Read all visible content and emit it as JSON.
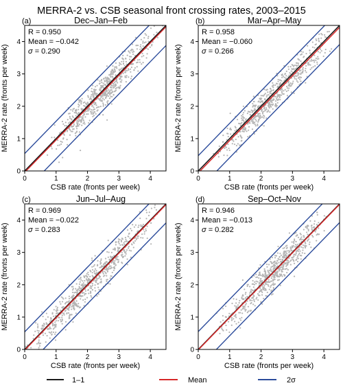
{
  "figure": {
    "title": "MERRA-2 vs. CSB seasonal front crossing rates, 2003–2015",
    "xlabel": "CSB rate (fronts per week)",
    "ylabel": "MERRA-2 rate (fronts per week)"
  },
  "legend": [
    {
      "label": "1–1",
      "color": "#1a1a1a"
    },
    {
      "label": "Mean",
      "color": "#d62728"
    },
    {
      "label": "2σ",
      "color": "#2b4b9b"
    }
  ],
  "colors": {
    "scatter": "#b5b5b5",
    "one_to_one": "#1a1a1a",
    "mean": "#d62728",
    "two_sigma": "#2b4b9b"
  },
  "chart_data": [
    {
      "type": "scatter",
      "panel": "(a)",
      "title": "Dec–Jan–Feb",
      "stats": {
        "R": "R = 0.950",
        "mean": "Mean = −0.042",
        "sigma": "= 0.290"
      },
      "mean_offset": -0.042,
      "sigma": 0.29,
      "r": 0.95,
      "point_range": [
        0.9,
        4.2
      ],
      "xlabel": "CSB rate (fronts per week)",
      "ylabel": "MERRA-2 rate (fronts per week)",
      "xlim": [
        0,
        4.5
      ],
      "ylim": [
        0,
        4.5
      ],
      "xticks": [
        "0",
        "1",
        "2",
        "3",
        "4"
      ],
      "yticks": [
        "0",
        "1",
        "2",
        "3",
        "4"
      ]
    },
    {
      "type": "scatter",
      "panel": "(b)",
      "title": "Mar–Apr–May",
      "stats": {
        "R": "R = 0.958",
        "mean": "Mean = −0.060",
        "sigma": "= 0.266"
      },
      "mean_offset": -0.06,
      "sigma": 0.266,
      "r": 0.958,
      "point_range": [
        0.7,
        4.1
      ],
      "xlabel": "CSB rate (fronts per week)",
      "ylabel": "MERRA-2 rate (fronts per week)",
      "xlim": [
        0,
        4.5
      ],
      "ylim": [
        0,
        4.5
      ],
      "xticks": [
        "0",
        "1",
        "2",
        "3",
        "4"
      ],
      "yticks": [
        "0",
        "1",
        "2",
        "3",
        "4"
      ]
    },
    {
      "type": "scatter",
      "panel": "(c)",
      "title": "Jun–Jul–Aug",
      "stats": {
        "R": "R = 0.969",
        "mean": "Mean = −0.022",
        "sigma": "= 0.283"
      },
      "mean_offset": -0.022,
      "sigma": 0.283,
      "r": 0.969,
      "point_range": [
        0.2,
        4.0
      ],
      "xlabel": "CSB rate (fronts per week)",
      "ylabel": "MERRA-2 rate (fronts per week)",
      "xlim": [
        0,
        4.5
      ],
      "ylim": [
        0,
        4.5
      ],
      "xticks": [
        "0",
        "1",
        "2",
        "3",
        "4"
      ],
      "yticks": [
        "0",
        "1",
        "2",
        "3",
        "4"
      ]
    },
    {
      "type": "scatter",
      "panel": "(d)",
      "title": "Sep–Oct–Nov",
      "stats": {
        "R": "R = 0.946",
        "mean": "Mean = −0.013",
        "sigma": "= 0.282"
      },
      "mean_offset": -0.013,
      "sigma": 0.282,
      "r": 0.946,
      "point_range": [
        0.8,
        3.9
      ],
      "xlabel": "CSB rate (fronts per week)",
      "ylabel": "MERRA-2 rate (fronts per week)",
      "xlim": [
        0,
        4.5
      ],
      "ylim": [
        0,
        4.5
      ],
      "xticks": [
        "0",
        "1",
        "2",
        "3",
        "4"
      ],
      "yticks": [
        "0",
        "1",
        "2",
        "3",
        "4"
      ]
    }
  ]
}
